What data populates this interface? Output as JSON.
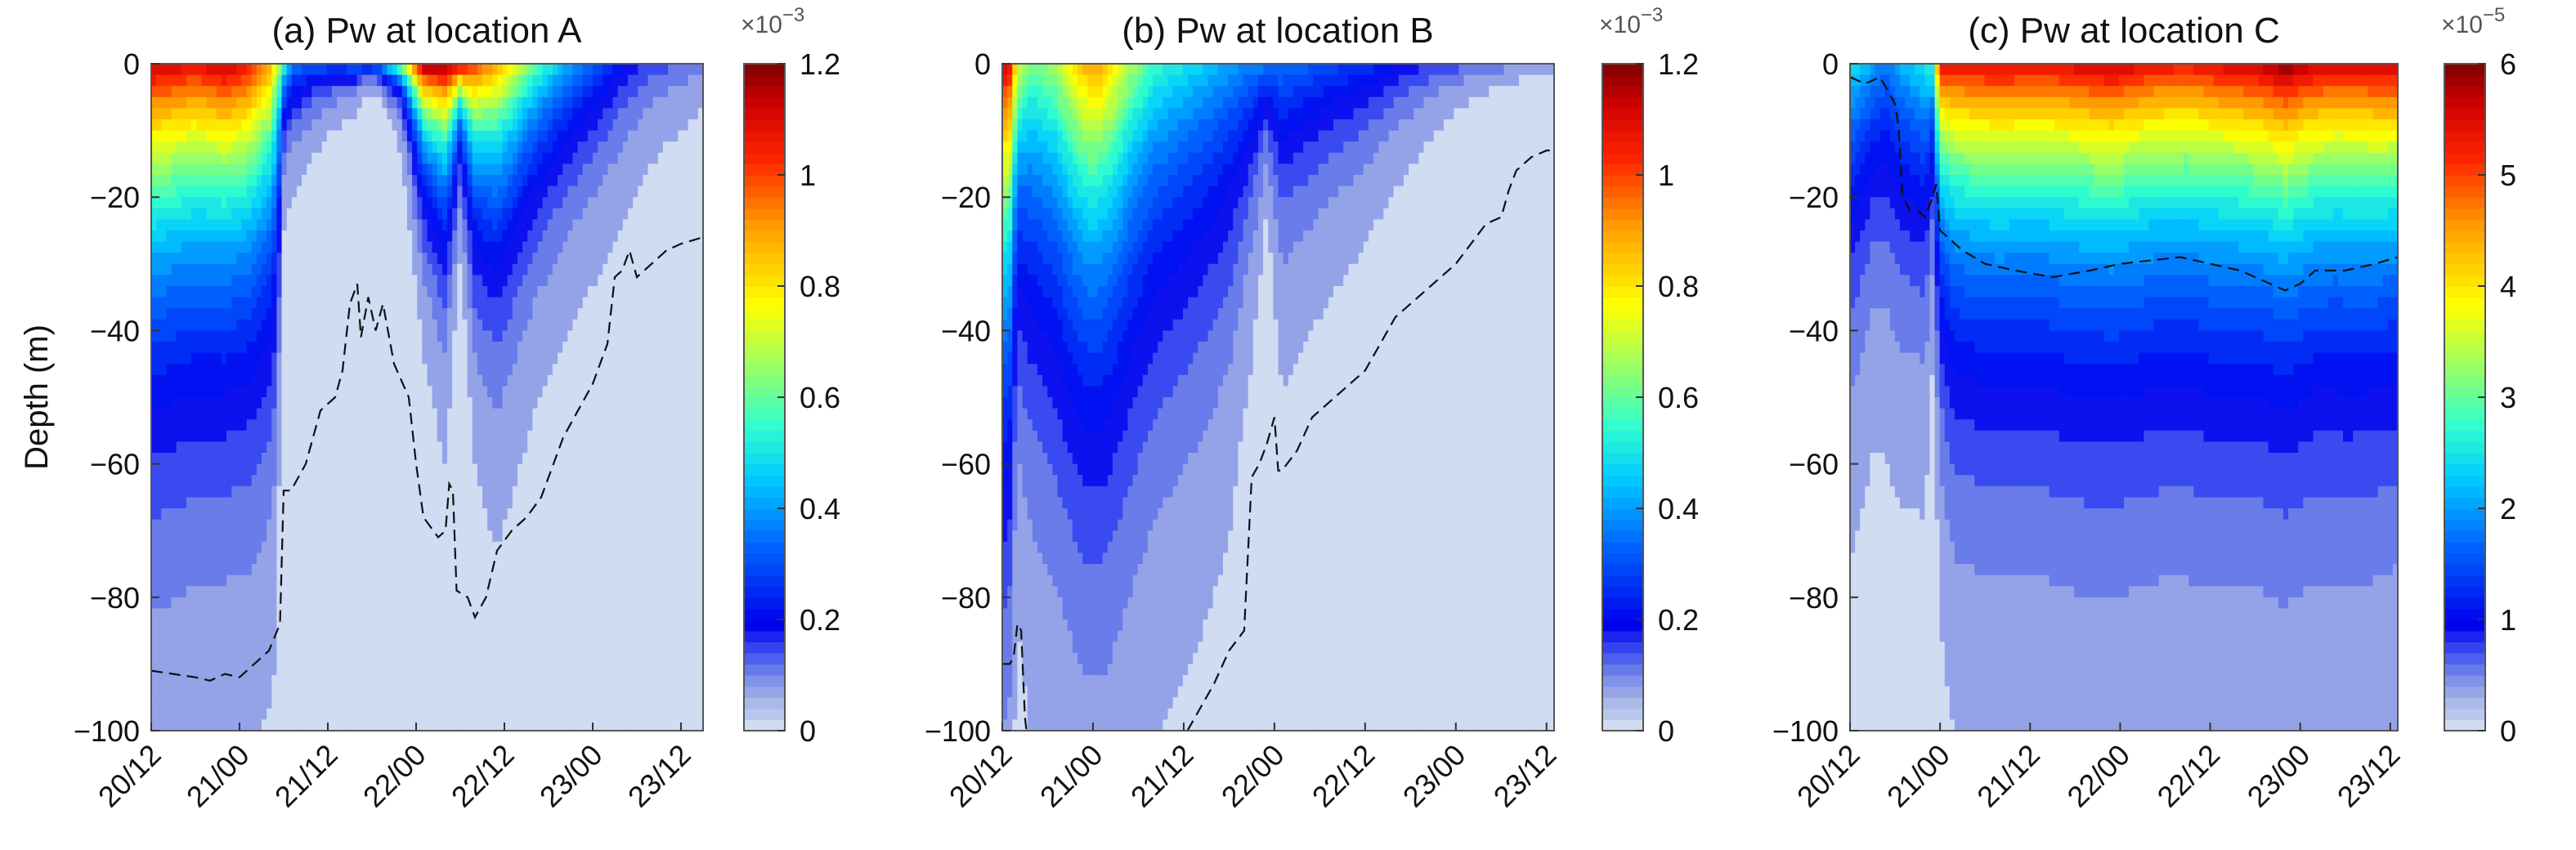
{
  "chart_data": [
    {
      "type": "contour",
      "title": "(a) Pw at location A",
      "xlabel": "",
      "ylabel": "Depth (m)",
      "x_tick_labels": [
        "20/12",
        "21/00",
        "21/12",
        "22/00",
        "22/12",
        "23/00",
        "23/12"
      ],
      "x_ticks_hours": [
        0,
        12,
        24,
        36,
        48,
        60,
        72
      ],
      "xlim_hours": [
        0,
        75
      ],
      "ylim": [
        -100,
        0
      ],
      "y_tick_labels": [
        "0",
        "−20",
        "−40",
        "−60",
        "−80",
        "−100"
      ],
      "y_ticks": [
        0,
        -20,
        -40,
        -60,
        -80,
        -100
      ],
      "colorbar": {
        "min": 0,
        "max": 1.2,
        "ticks": [
          0,
          0.2,
          0.4,
          0.6,
          0.8,
          1,
          1.2
        ],
        "tick_labels": [
          "0",
          "0.2",
          "0.4",
          "0.6",
          "0.8",
          "1",
          "1.2"
        ],
        "scale_label": "×10",
        "scale_exponent": "−3"
      },
      "surface_intensity": [
        [
          0,
          0.95
        ],
        [
          6,
          0.9
        ],
        [
          10,
          0.95
        ],
        [
          13,
          0.9
        ],
        [
          16,
          0.75
        ],
        [
          18,
          0.45
        ],
        [
          19,
          0.3
        ],
        [
          22,
          0.25
        ],
        [
          26,
          0.25
        ],
        [
          30,
          0.35
        ],
        [
          34,
          0.55
        ],
        [
          37,
          1.0
        ],
        [
          40,
          1.0
        ],
        [
          42,
          0.95
        ],
        [
          44,
          0.85
        ],
        [
          48,
          0.7
        ],
        [
          52,
          0.5
        ],
        [
          56,
          0.35
        ],
        [
          60,
          0.25
        ],
        [
          64,
          0.15
        ],
        [
          68,
          0.1
        ],
        [
          72,
          0.08
        ],
        [
          75,
          0.06
        ]
      ],
      "penetration_depth": [
        [
          0,
          72
        ],
        [
          6,
          70
        ],
        [
          10,
          68
        ],
        [
          14,
          68
        ],
        [
          17,
          64
        ],
        [
          18,
          20
        ],
        [
          21,
          15
        ],
        [
          24,
          10
        ],
        [
          27,
          8
        ],
        [
          29,
          4
        ],
        [
          31,
          4
        ],
        [
          34,
          10
        ],
        [
          37,
          28
        ],
        [
          40,
          38
        ],
        [
          42,
          18
        ],
        [
          44,
          40
        ],
        [
          47,
          50
        ],
        [
          52,
          40
        ],
        [
          57,
          34
        ],
        [
          62,
          30
        ],
        [
          66,
          25
        ],
        [
          70,
          18
        ],
        [
          75,
          14
        ]
      ],
      "dashed_line": [
        [
          0,
          -91
        ],
        [
          3,
          -91.5
        ],
        [
          6,
          -92
        ],
        [
          8,
          -92.5
        ],
        [
          10,
          -91.5
        ],
        [
          12,
          -92
        ],
        [
          14,
          -90
        ],
        [
          16,
          -88
        ],
        [
          17.5,
          -84
        ],
        [
          18,
          -64
        ],
        [
          19,
          -64
        ],
        [
          21,
          -60
        ],
        [
          23,
          -52
        ],
        [
          25,
          -50
        ],
        [
          26,
          -46
        ],
        [
          27,
          -36
        ],
        [
          28,
          -33
        ],
        [
          28.5,
          -41
        ],
        [
          29.5,
          -35
        ],
        [
          30.5,
          -40
        ],
        [
          31.5,
          -36
        ],
        [
          33,
          -45
        ],
        [
          35,
          -50
        ],
        [
          36,
          -60
        ],
        [
          37,
          -68
        ],
        [
          39,
          -71
        ],
        [
          40,
          -70
        ],
        [
          40.5,
          -63
        ],
        [
          41,
          -64
        ],
        [
          41.5,
          -79
        ],
        [
          43,
          -80
        ],
        [
          44,
          -83
        ],
        [
          45.5,
          -80
        ],
        [
          47,
          -73
        ],
        [
          49,
          -70
        ],
        [
          51,
          -68
        ],
        [
          53,
          -65
        ],
        [
          56,
          -56
        ],
        [
          58,
          -52
        ],
        [
          60,
          -48
        ],
        [
          61,
          -45
        ],
        [
          62,
          -42
        ],
        [
          63,
          -32
        ],
        [
          64,
          -31
        ],
        [
          65,
          -28
        ],
        [
          66,
          -32
        ],
        [
          68,
          -30
        ],
        [
          70,
          -28
        ],
        [
          72,
          -27
        ],
        [
          75,
          -26
        ]
      ],
      "tick_index_y": 0
    },
    {
      "type": "contour",
      "title": "(b) Pw at location B",
      "xlabel": "",
      "ylabel": "",
      "x_tick_labels": [
        "20/12",
        "21/00",
        "21/12",
        "22/00",
        "22/12",
        "23/00",
        "23/12"
      ],
      "x_ticks_hours": [
        0,
        12,
        24,
        36,
        48,
        60,
        72
      ],
      "xlim_hours": [
        0,
        73
      ],
      "ylim": [
        -100,
        0
      ],
      "y_tick_labels": [
        "0",
        "−20",
        "−40",
        "−60",
        "−80",
        "−100"
      ],
      "y_ticks": [
        0,
        -20,
        -40,
        -60,
        -80,
        -100
      ],
      "colorbar": {
        "min": 0,
        "max": 1.2,
        "ticks": [
          0,
          0.2,
          0.4,
          0.6,
          0.8,
          1,
          1.2
        ],
        "tick_labels": [
          "0",
          "0.2",
          "0.4",
          "0.6",
          "0.8",
          "1",
          "1.2"
        ],
        "scale_label": "×10",
        "scale_exponent": "−3"
      },
      "surface_intensity": [
        [
          0,
          0.95
        ],
        [
          1,
          0.9
        ],
        [
          2,
          0.6
        ],
        [
          4,
          0.5
        ],
        [
          7,
          0.55
        ],
        [
          10,
          0.7
        ],
        [
          12,
          0.75
        ],
        [
          14,
          0.7
        ],
        [
          17,
          0.55
        ],
        [
          20,
          0.45
        ],
        [
          24,
          0.4
        ],
        [
          28,
          0.35
        ],
        [
          32,
          0.3
        ],
        [
          36,
          0.28
        ],
        [
          40,
          0.25
        ],
        [
          44,
          0.22
        ],
        [
          48,
          0.2
        ],
        [
          52,
          0.15
        ],
        [
          56,
          0.12
        ],
        [
          60,
          0.1
        ],
        [
          64,
          0.08
        ],
        [
          68,
          0.06
        ],
        [
          73,
          0.04
        ]
      ],
      "penetration_depth": [
        [
          0,
          88
        ],
        [
          1,
          85
        ],
        [
          2,
          60
        ],
        [
          4,
          78
        ],
        [
          8,
          85
        ],
        [
          11,
          88
        ],
        [
          14,
          88
        ],
        [
          17,
          85
        ],
        [
          20,
          80
        ],
        [
          24,
          75
        ],
        [
          27,
          70
        ],
        [
          30,
          62
        ],
        [
          33,
          40
        ],
        [
          35,
          20
        ],
        [
          37,
          45
        ],
        [
          40,
          40
        ],
        [
          44,
          34
        ],
        [
          48,
          28
        ],
        [
          52,
          22
        ],
        [
          56,
          16
        ],
        [
          60,
          10
        ],
        [
          64,
          7
        ],
        [
          68,
          5
        ],
        [
          73,
          3
        ]
      ],
      "dashed_line": [
        [
          0,
          -90
        ],
        [
          1,
          -90
        ],
        [
          1.5,
          -89
        ],
        [
          2,
          -84
        ],
        [
          2.5,
          -85
        ],
        [
          3,
          -98
        ],
        [
          3.2,
          -100
        ]
      ],
      "dashed_line_2": [
        [
          24.5,
          -100
        ],
        [
          26,
          -97
        ],
        [
          28,
          -93
        ],
        [
          30,
          -88
        ],
        [
          32,
          -85
        ],
        [
          33,
          -62
        ],
        [
          34,
          -60
        ],
        [
          35,
          -57
        ],
        [
          36,
          -53
        ],
        [
          36.5,
          -61
        ],
        [
          37,
          -61
        ],
        [
          39,
          -58
        ],
        [
          41,
          -53
        ],
        [
          43,
          -51
        ],
        [
          45,
          -49
        ],
        [
          48,
          -46
        ],
        [
          50,
          -42
        ],
        [
          52,
          -38
        ],
        [
          55,
          -35
        ],
        [
          58,
          -32
        ],
        [
          60,
          -30
        ],
        [
          62,
          -27
        ],
        [
          64,
          -24
        ],
        [
          66,
          -23
        ],
        [
          67,
          -19
        ],
        [
          68,
          -16
        ],
        [
          69,
          -15
        ],
        [
          70,
          -14
        ],
        [
          72,
          -13
        ],
        [
          73,
          -13
        ]
      ],
      "tick_index_y": 1
    },
    {
      "type": "contour",
      "title": "(c) Pw at location C",
      "xlabel": "",
      "ylabel": "",
      "x_tick_labels": [
        "20/12",
        "21/00",
        "21/12",
        "22/00",
        "22/12",
        "23/00",
        "23/12"
      ],
      "x_ticks_hours": [
        0,
        12,
        24,
        36,
        48,
        60,
        72
      ],
      "xlim_hours": [
        0,
        73
      ],
      "ylim": [
        -100,
        0
      ],
      "y_tick_labels": [
        "0",
        "−20",
        "−40",
        "−60",
        "−80",
        "−100"
      ],
      "y_ticks": [
        0,
        -20,
        -40,
        -60,
        -80,
        -100
      ],
      "colorbar": {
        "min": 0,
        "max": 6,
        "ticks": [
          0,
          1,
          2,
          3,
          4,
          5,
          6
        ],
        "tick_labels": [
          "0",
          "1",
          "2",
          "3",
          "4",
          "5",
          "6"
        ],
        "scale_label": "×10",
        "scale_exponent": "−5"
      },
      "surface_intensity": [
        [
          0,
          0.4
        ],
        [
          2,
          0.35
        ],
        [
          4,
          0.3
        ],
        [
          5,
          0.28
        ],
        [
          7,
          0.35
        ],
        [
          9,
          0.38
        ],
        [
          11,
          0.45
        ],
        [
          12,
          0.9
        ],
        [
          15,
          0.9
        ],
        [
          20,
          0.92
        ],
        [
          25,
          0.9
        ],
        [
          30,
          0.92
        ],
        [
          35,
          0.95
        ],
        [
          40,
          0.9
        ],
        [
          45,
          0.88
        ],
        [
          50,
          0.92
        ],
        [
          55,
          0.95
        ],
        [
          58,
          1.0
        ],
        [
          61,
          0.95
        ],
        [
          65,
          0.92
        ],
        [
          70,
          0.94
        ],
        [
          73,
          0.95
        ]
      ],
      "penetration_depth": [
        [
          0,
          60
        ],
        [
          1,
          58
        ],
        [
          2,
          55
        ],
        [
          3,
          50
        ],
        [
          4,
          52
        ],
        [
          5,
          55
        ],
        [
          6,
          56
        ],
        [
          8,
          56
        ],
        [
          10,
          55
        ],
        [
          11,
          35
        ],
        [
          12,
          55
        ],
        [
          14,
          66
        ],
        [
          18,
          68
        ],
        [
          24,
          68
        ],
        [
          30,
          70
        ],
        [
          36,
          70
        ],
        [
          42,
          69
        ],
        [
          48,
          70
        ],
        [
          54,
          69
        ],
        [
          58,
          70
        ],
        [
          62,
          68
        ],
        [
          66,
          69
        ],
        [
          70,
          68
        ],
        [
          73,
          66
        ]
      ],
      "dashed_line": [
        [
          0,
          -2
        ],
        [
          2,
          -3
        ],
        [
          4,
          -2
        ],
        [
          6,
          -6
        ],
        [
          6.5,
          -10
        ],
        [
          7,
          -20
        ],
        [
          8,
          -22
        ],
        [
          9,
          -22
        ],
        [
          10,
          -23
        ],
        [
          11,
          -20
        ],
        [
          11.5,
          -18
        ],
        [
          12,
          -25
        ],
        [
          13,
          -26
        ],
        [
          15,
          -28
        ],
        [
          18,
          -30
        ],
        [
          22,
          -31
        ],
        [
          27,
          -32
        ],
        [
          32,
          -31
        ],
        [
          36,
          -30
        ],
        [
          40,
          -29.5
        ],
        [
          44,
          -29
        ],
        [
          48,
          -30
        ],
        [
          52,
          -31
        ],
        [
          56,
          -33
        ],
        [
          58,
          -34
        ],
        [
          60,
          -33
        ],
        [
          62,
          -31
        ],
        [
          66,
          -31
        ],
        [
          70,
          -30
        ],
        [
          73,
          -29
        ]
      ],
      "tick_index_y": 2
    }
  ]
}
